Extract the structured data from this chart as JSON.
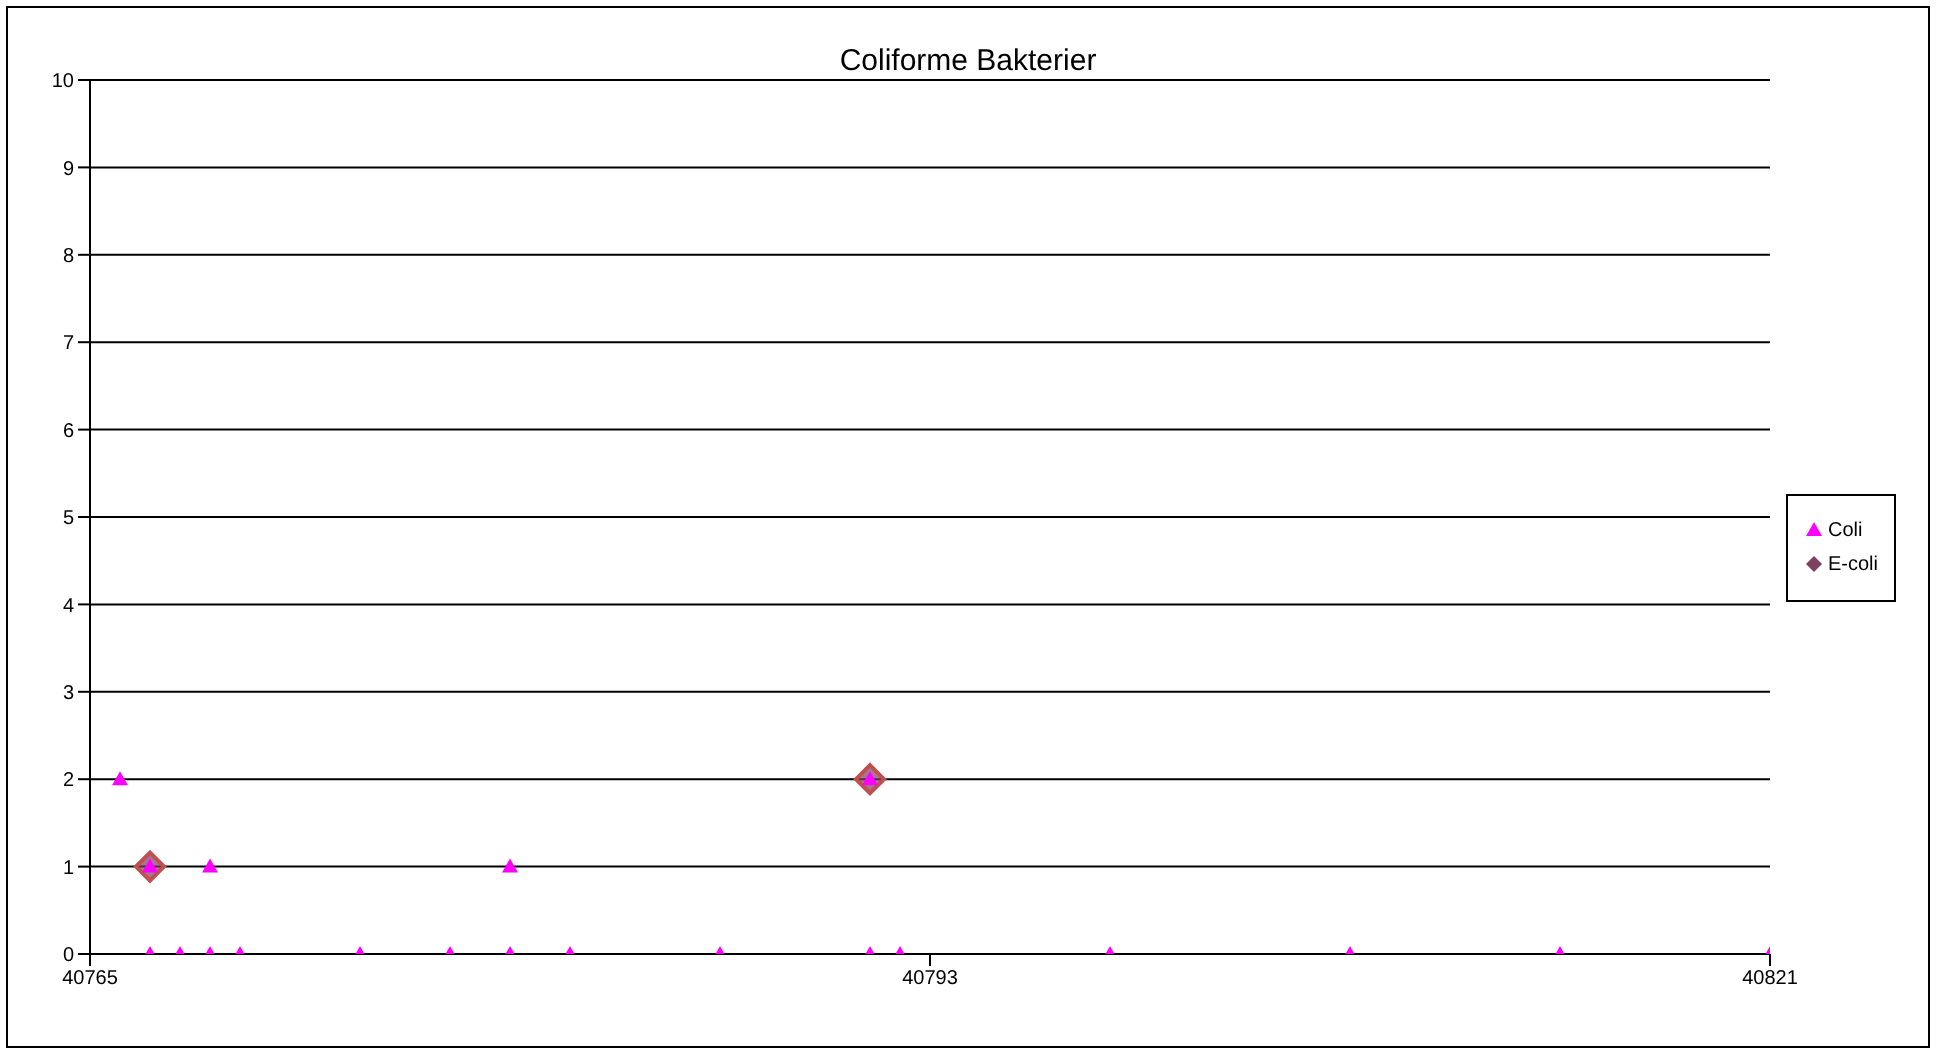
{
  "chart_data": {
    "type": "scatter",
    "title": "Coliforme Bakterier",
    "series": [
      {
        "name": "Coli",
        "color": "#ff00ff",
        "marker": "triangle",
        "x": [
          40766,
          40767,
          40767,
          40768,
          40769,
          40769,
          40770,
          40774,
          40777,
          40779,
          40779,
          40781,
          40786,
          40791,
          40791,
          40792,
          40799,
          40807,
          40814,
          40821
        ],
        "values": [
          2,
          1,
          0,
          0,
          1,
          0,
          0,
          0,
          0,
          1,
          0,
          0,
          0,
          2,
          0,
          0,
          0,
          0,
          0,
          0
        ]
      },
      {
        "name": "E-coli",
        "color": "#7f3f5f",
        "marker": "diamond",
        "x": [
          40767,
          40791
        ],
        "values": [
          1,
          2
        ]
      }
    ],
    "xlim": [
      40765,
      40821
    ],
    "xticks": [
      40765,
      40793,
      40821
    ],
    "ylim": [
      0,
      10
    ],
    "yticks": [
      0,
      1,
      2,
      3,
      4,
      5,
      6,
      7,
      8,
      9,
      10
    ],
    "grid": "y",
    "legend": "right"
  }
}
